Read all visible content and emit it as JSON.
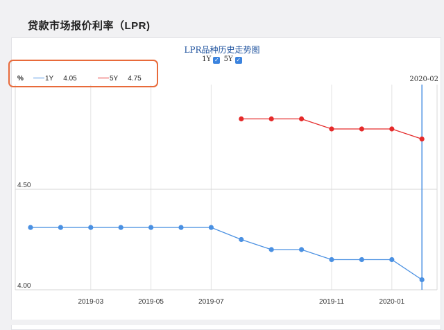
{
  "page_title": "贷款市场报价利率（LPR)",
  "legend": {
    "unit": "%",
    "items": [
      {
        "name": "1Y",
        "value": "4.05",
        "color": "#4a90e2"
      },
      {
        "name": "5Y",
        "value": "4.75",
        "color": "#e52a2a"
      }
    ]
  },
  "toggles": [
    {
      "label": "1Y",
      "checked": "✓"
    },
    {
      "label": "5Y",
      "checked": "✓"
    }
  ],
  "highlight_color": "#e86a3a",
  "chart_data": {
    "type": "line",
    "title": "LPR品种历史走势图",
    "x": [
      "2019-01",
      "2019-02",
      "2019-03",
      "2019-04",
      "2019-05",
      "2019-06",
      "2019-07",
      "2019-08",
      "2019-09",
      "2019-10",
      "2019-11",
      "2019-12",
      "2020-01",
      "2020-02"
    ],
    "x_tick_labels": [
      "2019-03",
      "2019-05",
      "2019-07",
      "2019-11",
      "2020-01"
    ],
    "x_tick_positions": [
      "2019-03",
      "2019-05",
      "2019-07",
      "2019-11",
      "2020-01"
    ],
    "series": [
      {
        "name": "1Y",
        "color": "#4a90e2",
        "values": [
          4.31,
          4.31,
          4.31,
          4.31,
          4.31,
          4.31,
          4.31,
          4.25,
          4.2,
          4.2,
          4.15,
          4.15,
          4.15,
          4.05
        ]
      },
      {
        "name": "5Y",
        "color": "#e52a2a",
        "values": [
          null,
          null,
          null,
          null,
          null,
          null,
          null,
          4.85,
          4.85,
          4.85,
          4.8,
          4.8,
          4.8,
          4.75
        ]
      }
    ],
    "y_tick_labels": [
      {
        "value": 4.0,
        "label": "4.00"
      },
      {
        "value": 4.5,
        "label": "4.50"
      }
    ],
    "ylim": [
      4.0,
      5.0
    ],
    "crosshair": {
      "x": "2020-02",
      "label": "2020-02"
    },
    "grid": true
  }
}
